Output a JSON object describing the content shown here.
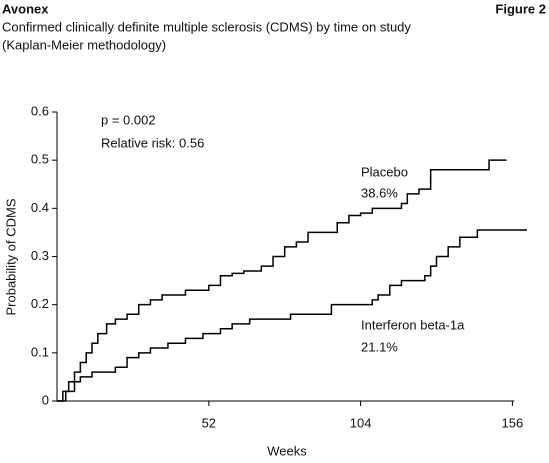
{
  "chart_data": {
    "type": "step",
    "title": "Avonex",
    "figure_label": "Figure 2",
    "subtitle": [
      "Confirmed clinically definite multiple sclerosis (CDMS) by time on study",
      "(Kaplan-Meier methodology)"
    ],
    "x_label": "Weeks",
    "y_label": "Probability of CDMS",
    "annotations": [
      "p = 0.002",
      "Relative risk: 0.56"
    ],
    "xlim": [
      0,
      161
    ],
    "xticks": [
      52,
      104,
      156
    ],
    "ylim": [
      0,
      0.6
    ],
    "yticks": [
      0,
      0.1,
      0.2,
      0.3,
      0.4,
      0.5,
      0.6
    ],
    "series": [
      {
        "name": "Placebo",
        "label": "38.6%",
        "color": "#000000",
        "x": [
          0,
          2,
          4,
          6,
          8,
          10,
          12,
          14,
          17,
          20,
          24,
          28,
          32,
          36,
          44,
          52,
          56,
          60,
          64,
          70,
          74,
          78,
          82,
          86,
          96,
          100,
          104,
          108,
          118,
          120,
          124,
          128,
          148,
          154
        ],
        "values": [
          0,
          0.02,
          0.04,
          0.06,
          0.08,
          0.1,
          0.12,
          0.14,
          0.16,
          0.17,
          0.18,
          0.2,
          0.21,
          0.22,
          0.23,
          0.24,
          0.26,
          0.265,
          0.27,
          0.28,
          0.3,
          0.32,
          0.33,
          0.35,
          0.37,
          0.385,
          0.39,
          0.4,
          0.41,
          0.43,
          0.44,
          0.48,
          0.5,
          0.5
        ]
      },
      {
        "name": "Interferon beta-1a",
        "label": "21.1%",
        "color": "#000000",
        "x": [
          0,
          3,
          6,
          8,
          12,
          20,
          24,
          28,
          32,
          38,
          44,
          50,
          56,
          60,
          66,
          80,
          94,
          108,
          110,
          114,
          118,
          126,
          128,
          130,
          134,
          138,
          144,
          161
        ],
        "values": [
          0,
          0.02,
          0.04,
          0.05,
          0.06,
          0.07,
          0.09,
          0.1,
          0.11,
          0.12,
          0.13,
          0.14,
          0.15,
          0.16,
          0.17,
          0.18,
          0.2,
          0.21,
          0.22,
          0.24,
          0.25,
          0.26,
          0.28,
          0.3,
          0.32,
          0.34,
          0.355,
          0.355
        ]
      }
    ]
  }
}
